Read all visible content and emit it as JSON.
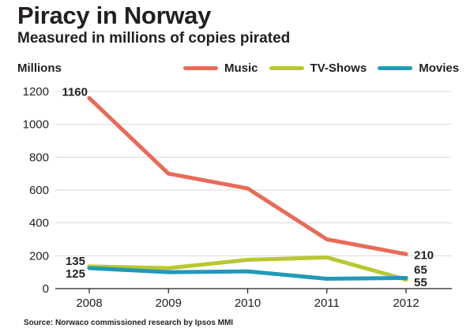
{
  "chart_data": {
    "type": "line",
    "title": "Piracy in Norway",
    "subtitle": "Measured in millions of copies pirated",
    "ylabel": "Millions",
    "xlabel": "",
    "categories": [
      "2008",
      "2009",
      "2010",
      "2011",
      "2012"
    ],
    "yticks": [
      0,
      200,
      400,
      600,
      800,
      1000,
      1200
    ],
    "ylim": [
      0,
      1200
    ],
    "grid": true,
    "legend_position": "top",
    "series": [
      {
        "name": "Music",
        "color": "#e96b57",
        "values": [
          1160,
          700,
          610,
          300,
          210
        ],
        "labels": {
          "0": "1160",
          "4": "210"
        }
      },
      {
        "name": "TV-Shows",
        "color": "#b8c832",
        "values": [
          135,
          125,
          175,
          190,
          55
        ],
        "labels": {
          "0": "135",
          "4": "55"
        }
      },
      {
        "name": "Movies",
        "color": "#1f9ab8",
        "values": [
          125,
          100,
          105,
          60,
          65
        ],
        "labels": {
          "0": "125",
          "4": "65"
        }
      }
    ]
  },
  "source": "Source: Norwaco commissioned research by Ipsos MMI"
}
